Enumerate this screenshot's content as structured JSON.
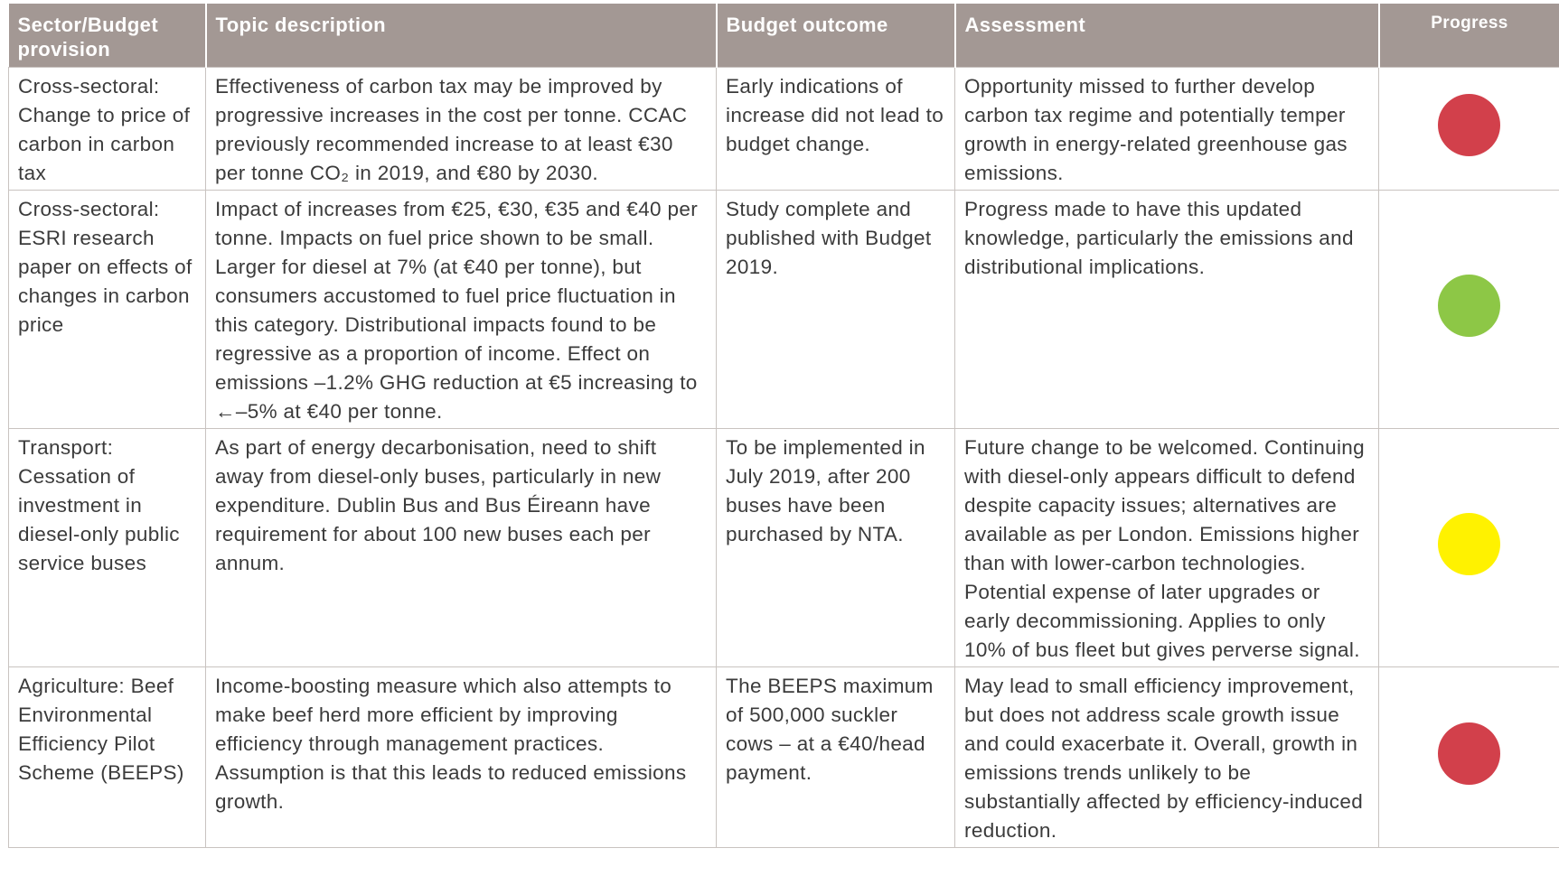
{
  "table": {
    "headers": [
      "Sector/Budget provision",
      "Topic description",
      "Budget outcome",
      "Assessment",
      "Progress"
    ],
    "rows": [
      {
        "cells": [
          "Cross-sectoral: Change to price of carbon in carbon tax",
          "Effectiveness of carbon tax may be improved by progressive increases in the cost per tonne. CCAC previously recommended increase to at least €30 per tonne CO₂ in 2019, and €80 by 2030.",
          "Early indications of increase did not lead to budget change.",
          "Opportunity missed to further develop carbon tax regime and potentially temper growth in energy-related greenhouse gas emissions."
        ],
        "progress_color": "#d2404b"
      },
      {
        "cells": [
          "Cross-sectoral: ESRI research paper on effects of changes in carbon price",
          "Impact of increases from €25, €30, €35 and €40 per tonne. Impacts on fuel price shown to be small. Larger for diesel at 7% (at €40 per tonne), but consumers accustomed to fuel price fluctuation in this category. Distributional impacts found to be regressive as a proportion of income. Effect on emissions –1.2% GHG reduction at €5 increasing to ←–5% at €40 per tonne.",
          "Study complete and published with Budget 2019.",
          "Progress made to have this updated knowledge, particularly the emissions and distributional implications."
        ],
        "progress_color": "#8dc746"
      },
      {
        "cells": [
          "Transport: Cessation of investment in diesel-only public service buses",
          "As part of energy decarbonisation, need to shift away from diesel-only buses, particularly in new expenditure. Dublin Bus and Bus Éireann have requirement for about 100 new buses each per annum.",
          "To be implemented in July 2019, after 200 buses have been purchased by NTA.",
          "Future change to be welcomed. Continuing with diesel-only appears difficult to defend despite capacity issues; alternatives are available as per London. Emissions higher than with lower-carbon technologies. Potential expense of later upgrades or early decommissioning. Applies to only 10% of bus fleet but gives perverse signal."
        ],
        "progress_color": "#fff200"
      },
      {
        "cells": [
          "Agriculture: Beef Environmental Efficiency Pilot Scheme (BEEPS)",
          "Income-boosting measure which also attempts to make beef herd more efficient by improving efficiency through management practices. Assumption is that this leads to reduced emissions growth.",
          "The BEEPS maximum of 500,000 suckler cows – at a €40/head payment.",
          "May lead to small efficiency improvement, but does not address scale growth issue and could exacerbate it. Overall, growth in emissions trends unlikely to be substantially affected by efficiency-induced reduction."
        ],
        "progress_color": "#d2404b"
      }
    ]
  }
}
